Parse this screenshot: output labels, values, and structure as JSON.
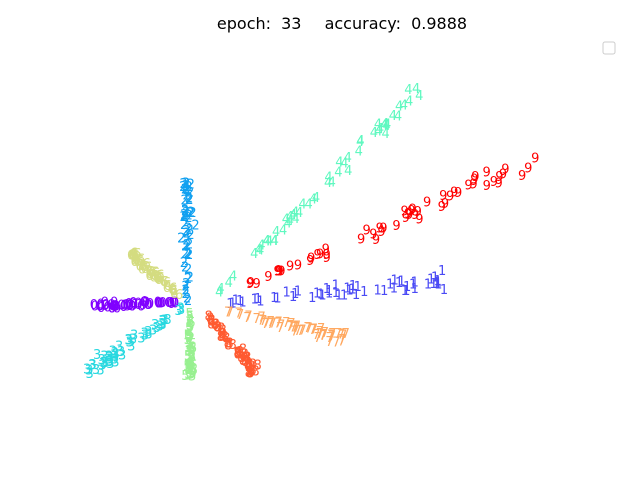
{
  "chart_data": {
    "type": "scatter",
    "title_epoch_label": "epoch:",
    "epoch": "33",
    "title_accuracy_label": "accuracy:",
    "accuracy": "0.9888",
    "xlabel": "",
    "ylabel": "",
    "xlim": [
      -3.4,
      11.0
    ],
    "ylim": [
      -4.2,
      8.0
    ],
    "grid": false,
    "axes_visible": false,
    "legend": "top-right",
    "marker": "digit-text",
    "series": [
      {
        "digit": "0",
        "color": "#8000ff",
        "center": [
          -0.6,
          0.0
        ],
        "end": [
          -3.0,
          -0.12
        ],
        "spread": 0.12
      },
      {
        "digit": "1",
        "color": "#4a4af5",
        "center": [
          0.9,
          0.0
        ],
        "end": [
          7.3,
          0.7
        ],
        "spread": 0.25
      },
      {
        "digit": "2",
        "color": "#10a0f0",
        "center": [
          -0.3,
          0.0
        ],
        "end": [
          -0.3,
          4.0
        ],
        "spread": 0.18
      },
      {
        "digit": "3",
        "color": "#28d8e0",
        "center": [
          -0.4,
          -0.2
        ],
        "end": [
          -3.2,
          -2.3
        ],
        "spread": 0.22
      },
      {
        "digit": "4",
        "color": "#60f8c0",
        "center": [
          0.4,
          0.1
        ],
        "end": [
          6.6,
          7.1
        ],
        "spread": 0.25
      },
      {
        "digit": "5",
        "color": "#98f090",
        "center": [
          -0.2,
          -0.3
        ],
        "end": [
          -0.2,
          -2.4
        ],
        "spread": 0.12
      },
      {
        "digit": "6",
        "color": "#d4dc80",
        "center": [
          -0.4,
          0.1
        ],
        "end": [
          -1.9,
          1.6
        ],
        "spread": 0.15
      },
      {
        "digit": "7",
        "color": "#ffa860",
        "center": [
          0.5,
          -0.2
        ],
        "end": [
          4.3,
          -1.2
        ],
        "spread": 0.15
      },
      {
        "digit": "8",
        "color": "#ff5a30",
        "center": [
          0.2,
          -0.3
        ],
        "end": [
          1.7,
          -2.3
        ],
        "spread": 0.15
      },
      {
        "digit": "9",
        "color": "#ff0000",
        "center": [
          0.6,
          0.1
        ],
        "end": [
          9.9,
          4.7
        ],
        "spread": 0.3
      }
    ]
  }
}
